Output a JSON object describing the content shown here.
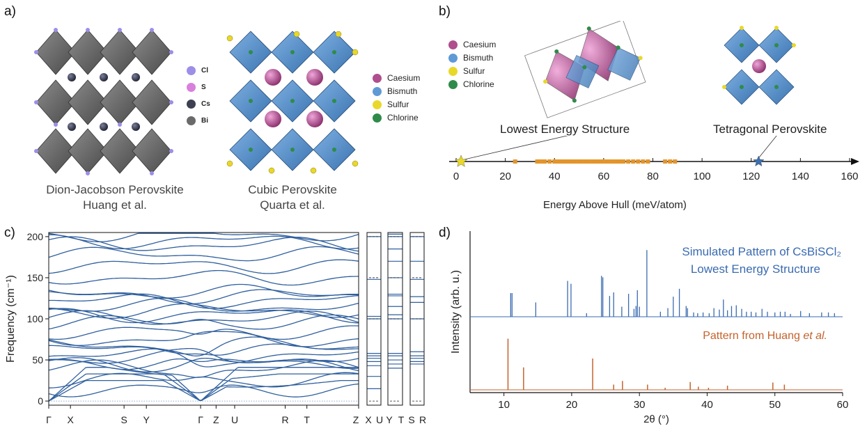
{
  "panels": {
    "a": "a)",
    "b": "b)",
    "c": "c)",
    "d": "d)"
  },
  "panel_a": {
    "dj_legend": [
      {
        "label": "Cl",
        "color": "#9d8ee8"
      },
      {
        "label": "S",
        "color": "#d97fdc"
      },
      {
        "label": "Cs",
        "color": "#3d3f52"
      },
      {
        "label": "Bi",
        "color": "#6a6a6a"
      }
    ],
    "cubic_legend": [
      {
        "label": "Caesium",
        "color": "#b04e8e"
      },
      {
        "label": "Bismuth",
        "color": "#5f9ad6"
      },
      {
        "label": "Sulfur",
        "color": "#e9d82a"
      },
      {
        "label": "Chlorine",
        "color": "#2f8b49"
      }
    ],
    "dj_caption_line1": "Dion-Jacobson Perovskite",
    "dj_caption_line2": "Huang et al.",
    "cubic_caption_line1": "Cubic Perovskite",
    "cubic_caption_line2": "Quarta et al."
  },
  "panel_b": {
    "legend": [
      {
        "label": "Caesium",
        "color": "#b04e8e"
      },
      {
        "label": "Bismuth",
        "color": "#5f9ad6"
      },
      {
        "label": "Sulfur",
        "color": "#e9d82a"
      },
      {
        "label": "Chlorine",
        "color": "#2f8b49"
      }
    ],
    "lowest_label": "Lowest Energy Structure",
    "tetragonal_label": "Tetragonal Perovskite",
    "xlabel": "Energy Above Hull (meV/atom)"
  },
  "panel_c": {
    "ylabel": "Frequency (cm⁻¹)"
  },
  "panel_d": {
    "sim_label_line1": "Simulated Pattern of CsBiSCl₂",
    "sim_label_line2": "Lowest Energy Structure",
    "exp_label_main": "Pattern from Huang ",
    "exp_label_italic": "et al.",
    "ylabel": "Intensity (arb. u.)",
    "xlabel": "2θ (°)"
  },
  "chart_data": [
    {
      "type": "scatter",
      "panel": "b",
      "xlabel": "Energy Above Hull (meV/atom)",
      "xlim": [
        0,
        160
      ],
      "xticks": [
        0,
        20,
        40,
        60,
        80,
        100,
        120,
        140,
        160
      ],
      "series": [
        {
          "name": "Lowest Energy Structure",
          "marker": "star",
          "color": "#e9d82a",
          "x": [
            2
          ]
        },
        {
          "name": "Tetragonal Perovskite",
          "marker": "star",
          "color": "#3b6fb0",
          "x": [
            123
          ]
        },
        {
          "marker": "rect",
          "color": "#e3952b",
          "x": [
            24,
            33,
            34,
            35,
            36,
            38,
            40,
            41,
            42,
            43,
            44,
            45,
            46,
            47,
            48,
            49,
            50,
            51,
            52,
            53,
            54,
            55,
            56,
            57,
            58,
            59,
            60,
            61,
            62,
            63,
            64,
            65,
            66,
            67,
            68,
            70,
            72,
            74,
            76,
            78,
            85,
            87,
            89
          ]
        }
      ]
    },
    {
      "type": "line",
      "panel": "c",
      "ylabel": "Frequency (cm⁻¹)",
      "ylim": [
        -5,
        205
      ],
      "yticks": [
        0,
        50,
        100,
        150,
        200
      ],
      "kpath_main": [
        "Γ",
        "X",
        "S",
        "Y",
        "Γ",
        "Z",
        "U",
        "R",
        "T",
        "Z"
      ],
      "kpath_side": [
        "X",
        "U",
        "Y",
        "T",
        "S",
        "R"
      ],
      "branch_endpoints_at_gamma": [
        0,
        0,
        0,
        15,
        25,
        40,
        45,
        48,
        52,
        55,
        62,
        68,
        75,
        85,
        95,
        100,
        105,
        110,
        115,
        122,
        128,
        132,
        150,
        165,
        178,
        190,
        195,
        203
      ],
      "side_levels": {
        "XU": [
          15,
          30,
          43,
          48,
          52,
          55,
          58,
          100,
          103,
          148,
          200
        ],
        "YT": [
          40,
          45,
          50,
          55,
          58,
          100,
          105,
          115,
          128,
          130,
          150,
          170,
          185,
          200,
          203
        ],
        "SR": [
          45,
          48,
          52,
          55,
          60,
          100,
          120,
          127,
          148,
          170,
          200
        ]
      }
    },
    {
      "type": "bar",
      "panel": "d",
      "xlabel": "2θ (°)",
      "ylabel": "Intensity (arb. u.)",
      "xlim": [
        5,
        60
      ],
      "xticks": [
        10,
        20,
        30,
        40,
        50,
        60
      ],
      "series": [
        {
          "name": "Simulated Pattern of CsBiSCl₂",
          "color": "#3a6bb0",
          "x": [
            11.0,
            11.2,
            14.7,
            19.4,
            19.9,
            22.2,
            24.4,
            24.6,
            25.6,
            26.2,
            27.4,
            28.4,
            29.2,
            29.5,
            29.7,
            30.0,
            31.1,
            33.1,
            34.2,
            35.0,
            35.9,
            36.9,
            37.1,
            38.0,
            38.6,
            39.4,
            40.3,
            41.0,
            41.8,
            42.4,
            43.0,
            43.6,
            44.3,
            45.1,
            45.8,
            46.5,
            47.2,
            48.1,
            48.9,
            50.0,
            50.8,
            51.5,
            52.3,
            53.8,
            55.1,
            56.9,
            57.9,
            58.8
          ],
          "values": [
            0.33,
            0.33,
            0.2,
            0.5,
            0.46,
            0.05,
            0.57,
            0.55,
            0.29,
            0.34,
            0.14,
            0.32,
            0.11,
            0.15,
            0.37,
            0.14,
            0.93,
            0.07,
            0.12,
            0.28,
            0.39,
            0.15,
            0.12,
            0.06,
            0.05,
            0.06,
            0.05,
            0.12,
            0.1,
            0.24,
            0.09,
            0.15,
            0.16,
            0.11,
            0.07,
            0.07,
            0.06,
            0.11,
            0.07,
            0.06,
            0.07,
            0.07,
            0.04,
            0.08,
            0.05,
            0.06,
            0.06,
            0.05
          ]
        },
        {
          "name": "Pattern from Huang et al.",
          "color": "#c4622d",
          "x": [
            10.6,
            12.9,
            23.1,
            26.2,
            27.5,
            31.2,
            33.8,
            37.5,
            38.7,
            40.2,
            43.0,
            49.7,
            51.4
          ],
          "values": [
            0.98,
            0.43,
            0.6,
            0.1,
            0.17,
            0.1,
            0.04,
            0.15,
            0.06,
            0.04,
            0.08,
            0.14,
            0.1
          ]
        }
      ]
    }
  ]
}
